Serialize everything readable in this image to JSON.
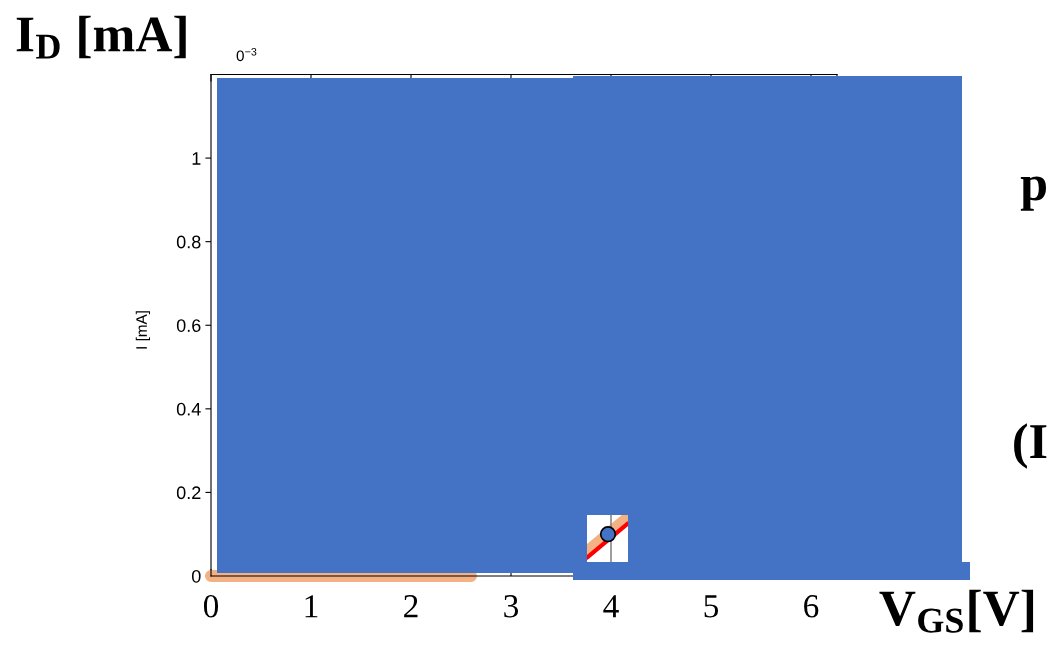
{
  "chart_data": {
    "type": "line",
    "xlabel": "V$_{GS}$[V]",
    "ylabel": "I [mA]",
    "annotations": [
      "I$_{D}$ [mA]",
      "0$^{−3}$",
      "p",
      "(I"
    ],
    "xlim": [
      0,
      6.26
    ],
    "ylim": [
      0,
      1.2
    ],
    "xticks": [
      0,
      1,
      2,
      3,
      4,
      5,
      6
    ],
    "yticks": [
      0,
      0.2,
      0.4,
      0.6,
      0.8,
      1
    ],
    "series": [
      {
        "color": "#f4b183",
        "x": [
          0,
          2.6,
          3.2,
          3.76,
          4.17
        ],
        "values": [
          0,
          0,
          null,
          0.058,
          0.14
        ]
      },
      {
        "color": "#ff0000",
        "x": [
          3.76,
          4.17
        ],
        "values": [
          0.044,
          0.126
        ]
      },
      {
        "color": "#808080",
        "x": [
          4,
          4
        ],
        "values": [
          0.034,
          0.146
        ]
      },
      {
        "type": "scatter",
        "color": "#4472c4",
        "x": [
          3.97
        ],
        "values": [
          0.1
        ],
        "marker": "circle"
      }
    ]
  }
}
